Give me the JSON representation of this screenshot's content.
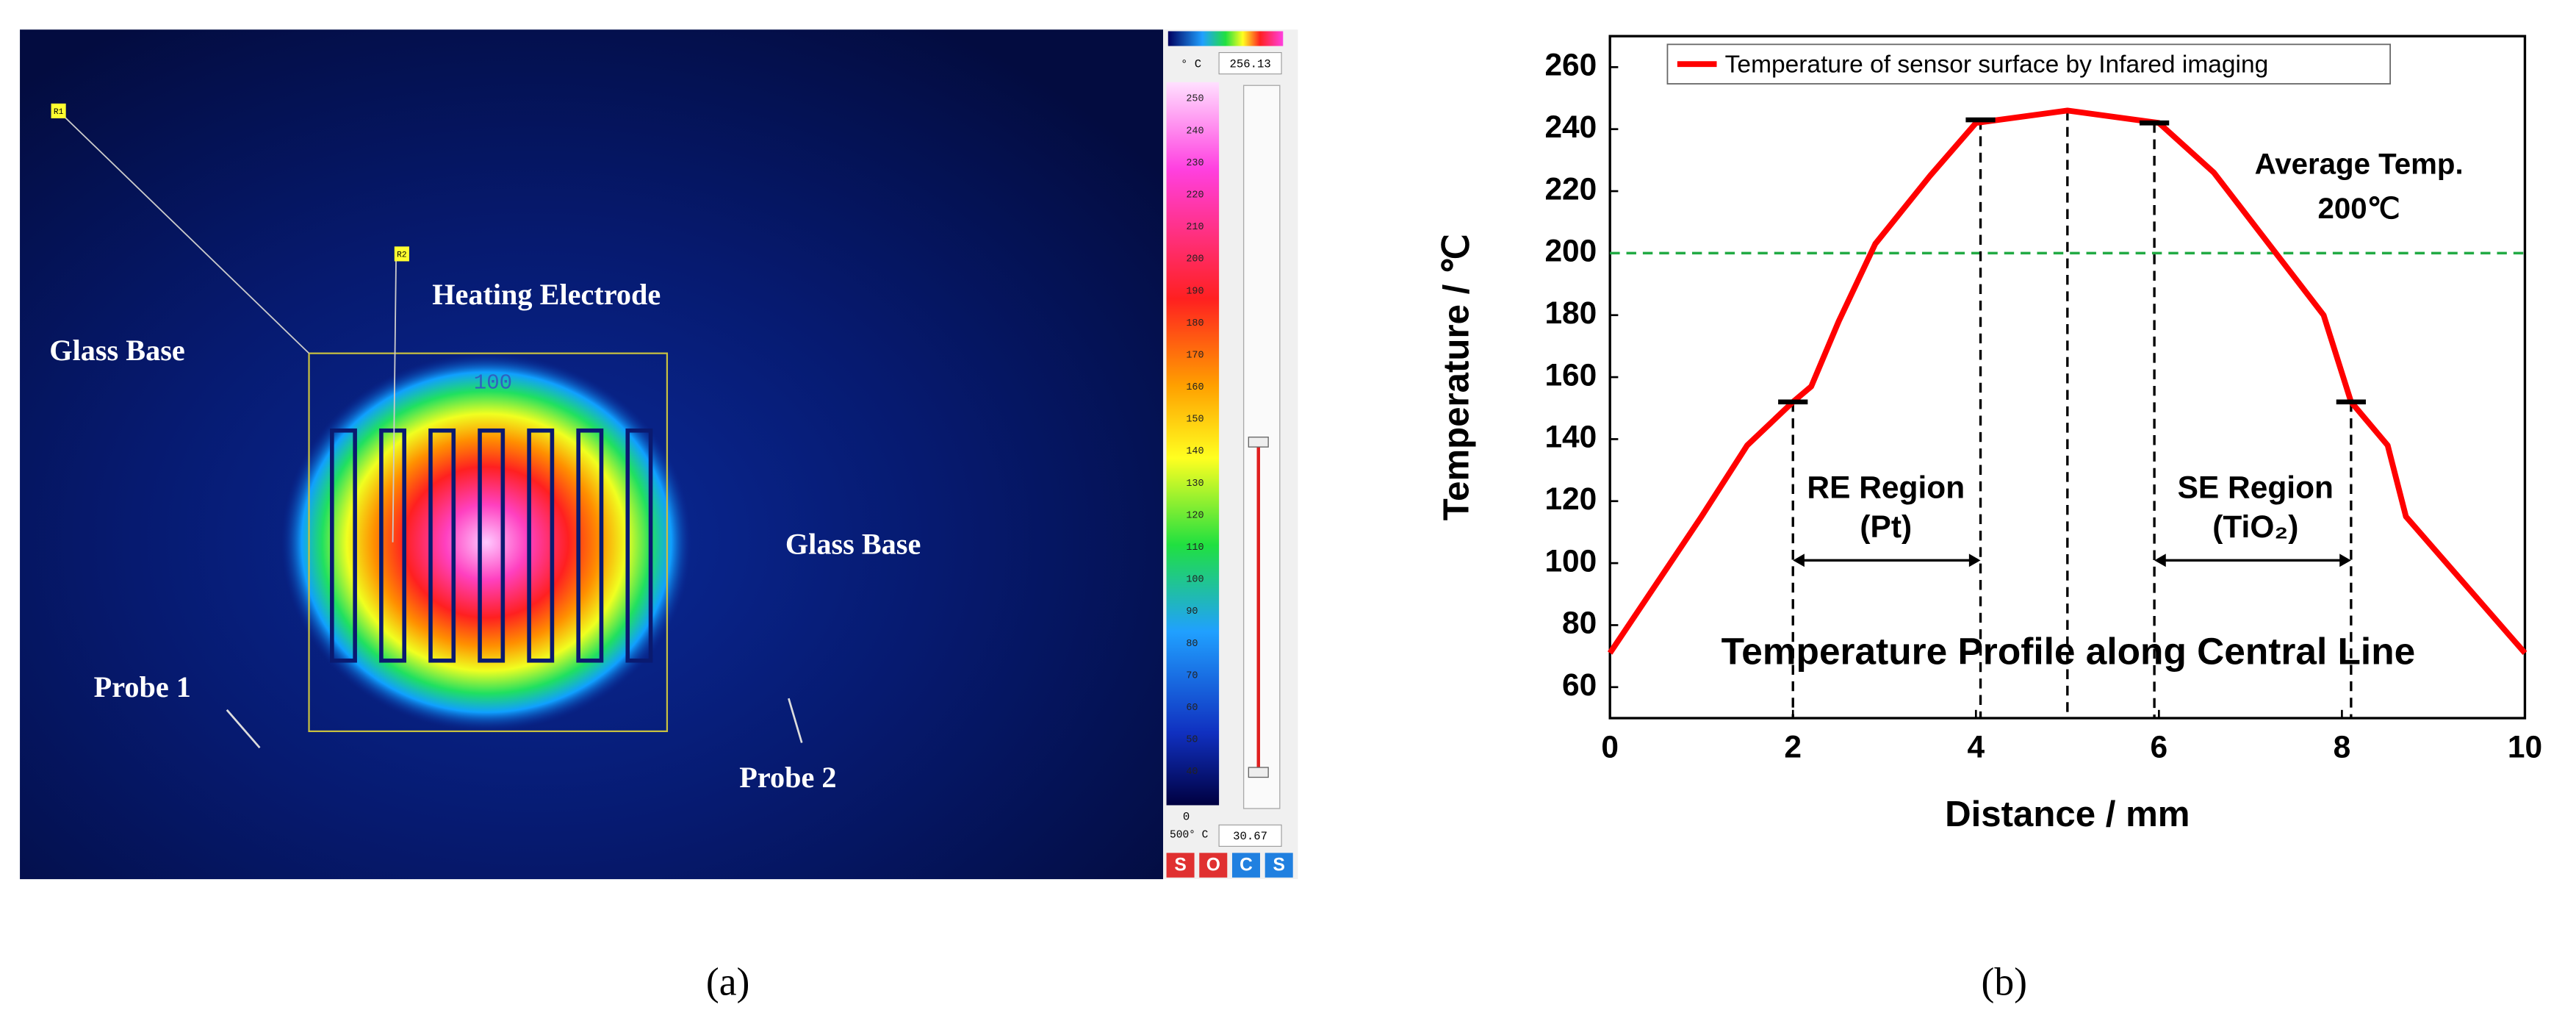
{
  "panel_a": {
    "labels": [
      "Glass Base",
      "Heating Electrode",
      "Glass Base",
      "Probe 1",
      "Probe 2"
    ],
    "box_label": "100",
    "markers": [
      "R1",
      "R2"
    ],
    "unit": "° C",
    "max_reading": "256.13",
    "scale_labels": [
      250,
      240,
      230,
      220,
      210,
      200,
      190,
      180,
      170,
      160,
      150,
      140,
      130,
      120,
      110,
      100,
      90,
      80,
      70,
      60,
      50,
      40
    ],
    "scale_min": "0",
    "scale_range": "500° C",
    "min_reading": "30.67",
    "buttons": [
      "S",
      "O",
      "C",
      "S"
    ],
    "caption": "(a)"
  },
  "chart_data": {
    "type": "line",
    "caption": "(b)",
    "xlabel": "Distance / mm",
    "ylabel": "Temperature / ℃",
    "xlim": [
      0,
      10
    ],
    "ylim": [
      50,
      270
    ],
    "xticks": [
      0,
      2,
      4,
      6,
      8,
      10
    ],
    "yticks": [
      60,
      80,
      100,
      120,
      140,
      160,
      180,
      200,
      220,
      240,
      260
    ],
    "legend": "top-left",
    "series": [
      {
        "name": "Temperature of sensor surface by Infared imaging",
        "color": "#ff0000",
        "x": [
          0,
          1,
          1.5,
          2,
          2.2,
          2.5,
          2.9,
          3.5,
          4,
          5,
          6,
          6.6,
          7.2,
          7.8,
          8.1,
          8.5,
          8.7,
          10
        ],
        "values": [
          71,
          115,
          138,
          152,
          157,
          178,
          203,
          225,
          242,
          246,
          242,
          226,
          203,
          180,
          152,
          138,
          115,
          71
        ]
      }
    ],
    "reference_line": {
      "value": 200,
      "color": "#22aa44"
    },
    "drop_lines": {
      "x": [
        2,
        4.05,
        5,
        5.95,
        8.1
      ],
      "y": [
        152,
        243,
        246,
        242,
        152
      ]
    },
    "caps": {
      "x": [
        2,
        4.05,
        5.95,
        8.1
      ],
      "y": [
        152,
        243,
        242,
        152
      ]
    },
    "annotations": [
      "Average Temp.",
      "200℃",
      "RE Region",
      "(Pt)",
      "SE Region",
      "(TiO₂)",
      "Temperature Profile along Central Line"
    ]
  }
}
